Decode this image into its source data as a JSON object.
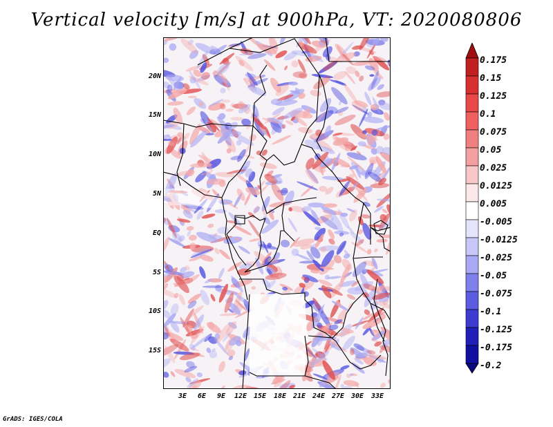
{
  "title": "Vertical velocity [m/s] at 900hPa, VT: 2020080806",
  "footer": "GrADS: IGES/COLA",
  "lat_labels": [
    "20N",
    "15N",
    "10N",
    "5N",
    "EQ",
    "5S",
    "10S",
    "15S"
  ],
  "lon_labels": [
    "3E",
    "6E",
    "9E",
    "12E",
    "15E",
    "18E",
    "21E",
    "24E",
    "27E",
    "30E",
    "33E"
  ],
  "colorbar": {
    "labels": [
      "0.175",
      "0.15",
      "0.125",
      "0.1",
      "0.075",
      "0.05",
      "0.025",
      "0.0125",
      "0.005",
      "-0.005",
      "-0.0125",
      "-0.025",
      "-0.05",
      "-0.075",
      "-0.1",
      "-0.125",
      "-0.175",
      "-0.2"
    ],
    "colors": [
      "#a01010",
      "#c02020",
      "#d83030",
      "#e84848",
      "#f06060",
      "#f08080",
      "#f4a0a0",
      "#f8c8c8",
      "#fce8e8",
      "#ffffff",
      "#e4e4fc",
      "#c8c8f8",
      "#a8a8f4",
      "#8080ec",
      "#5c5ce0",
      "#3c3cd0",
      "#2020b8",
      "#1010a0",
      "#0a0a80"
    ]
  },
  "field_colors": {
    "up_strong": "#e05050",
    "up": "#f4a8a8",
    "down": "#a8a8f4",
    "down_strong": "#5050e0",
    "border": "#000000"
  }
}
